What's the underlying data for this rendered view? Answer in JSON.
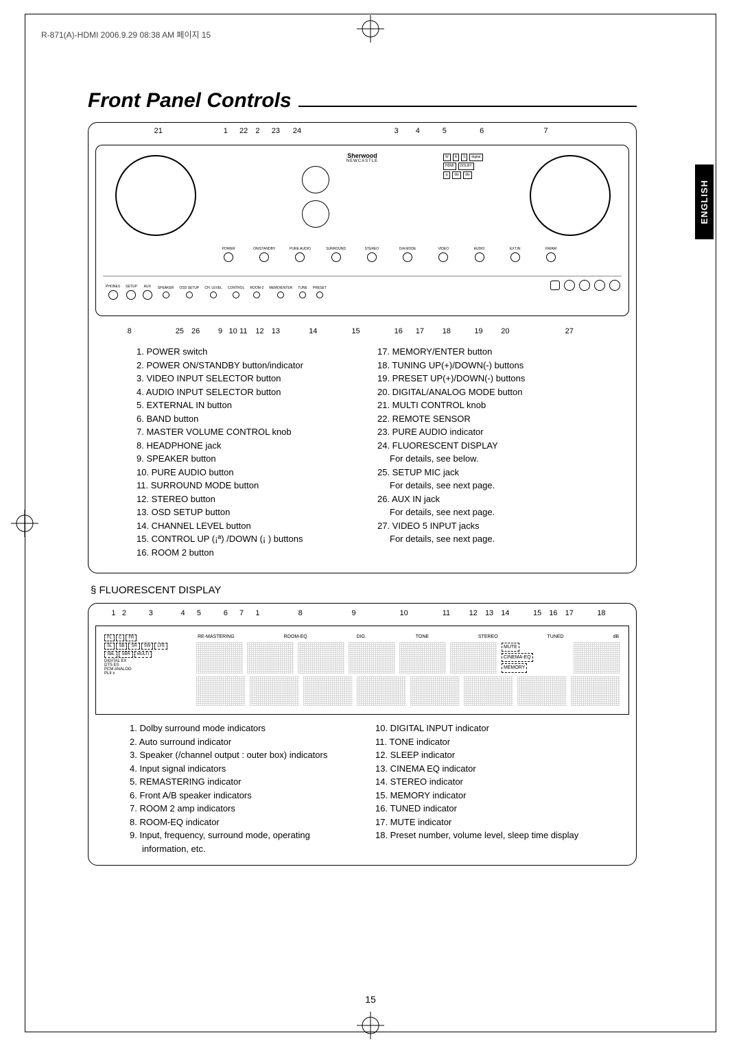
{
  "meta": {
    "header_line": "R-871(A)-HDMI  2006.9.29  08:38 AM  페이지 15",
    "page_number": "15",
    "lang_tab": "ENGLISH"
  },
  "title": "Front Panel Controls",
  "section2_title": "§ FLUORESCENT DISPLAY",
  "panel": {
    "top_callouts": [
      "21",
      "1",
      "22",
      "2",
      "23",
      "24",
      "3",
      "4",
      "5",
      "6",
      "7"
    ],
    "brand": "Sherwood",
    "brand_sub": "NEWCASTLE",
    "btn_labels": [
      "POWER",
      "ON/STANDBY",
      "PURE AUDIO",
      "SURROUND",
      "STEREO",
      "D/A MODE",
      "VIDEO",
      "AUDIO",
      "EXT.IN",
      "FM/AM"
    ],
    "lower_labels": [
      "PHONES",
      "SETUP",
      "AUX",
      "SPEAKER",
      "OSD SETUP",
      "CH. LEVEL",
      "CONTROL",
      "ROOM-2",
      "MEMO/ENTER",
      "TUNE",
      "PRESET"
    ],
    "jack_labels": [
      "OPT.5",
      "S-VIDEO",
      "VIDEO",
      "L—AUDIO—R"
    ],
    "bottom_callouts": [
      "8",
      "25",
      "26",
      "9",
      "10",
      "11",
      "12",
      "13",
      "14",
      "15",
      "16",
      "17",
      "18",
      "19",
      "20",
      "27"
    ]
  },
  "legend": {
    "left": [
      "1. POWER switch",
      "2. POWER ON/STANDBY button/indicator",
      "3. VIDEO INPUT SELECTOR button",
      "4. AUDIO INPUT SELECTOR button",
      "5. EXTERNAL IN button",
      "6. BAND button",
      "7. MASTER VOLUME CONTROL knob",
      "8. HEADPHONE jack",
      "9. SPEAKER button",
      "10. PURE AUDIO button",
      "11. SURROUND MODE button",
      "12. STEREO button",
      "13. OSD SETUP button",
      "14. CHANNEL LEVEL button",
      "15. CONTROL UP (¡ª) /DOWN (¡ ) buttons",
      "16. ROOM 2 button"
    ],
    "right": [
      "17. MEMORY/ENTER button",
      "18. TUNING UP(+)/DOWN(-) buttons",
      "19. PRESET UP(+)/DOWN(-) buttons",
      "20. DIGITAL/ANALOG MODE button",
      "21. MULTI CONTROL knob",
      "22. REMOTE SENSOR",
      "23. PURE AUDIO indicator",
      "24. FLUORESCENT DISPLAY",
      "    For details, see below.",
      "25. SETUP MIC jack",
      "    For details, see next page.",
      "26. AUX IN jack",
      "    For details, see next page.",
      "27. VIDEO 5 INPUT jacks",
      "    For details, see next page."
    ]
  },
  "fl": {
    "top_callouts": [
      "1",
      "2",
      "3",
      "4",
      "5",
      "6",
      "7",
      "1",
      "8",
      "9",
      "10",
      "11",
      "12",
      "13",
      "14",
      "15",
      "16",
      "17",
      "18"
    ],
    "indicators_rows": [
      [
        "FL",
        "C",
        "FR"
      ],
      [
        "SL",
        "SB",
        "SR",
        "SW",
        "LFE"
      ],
      [
        "SBL",
        "SBR",
        "MULTI"
      ]
    ],
    "small_rows": [
      "DIGITAL EX",
      "DTS ES",
      "PCM  ANALOG",
      "PLII x"
    ],
    "top_labels": [
      "RE-MASTERING",
      "ROOM-EQ",
      "DIG.",
      "TONE",
      "STEREO",
      "TUNED",
      "dB"
    ],
    "right_labels": [
      "MUTE",
      "CINEMA-EQ",
      "MEMORY"
    ]
  },
  "fl_legend": {
    "left": [
      "1. Dolby surround mode indicators",
      "2. Auto surround indicator",
      "3. Speaker (/channel output : outer box) indicators",
      "4. Input signal indicators",
      "5. REMASTERING indicator",
      "6. Front A/B speaker indicators",
      "7. ROOM 2 amp indicators",
      "8. ROOM-EQ indicator",
      "9. Input, frequency, surround mode, operating",
      "    information, etc."
    ],
    "right": [
      "10. DIGITAL INPUT indicator",
      "11. TONE indicator",
      "12. SLEEP indicator",
      "13. CINEMA EQ indicator",
      "14. STEREO indicator",
      "15. MEMORY indicator",
      "16. TUNED indicator",
      "17. MUTE indicator",
      "18. Preset number, volume level, sleep time display"
    ]
  },
  "colors": {
    "page_bg": "#ffffff",
    "ink": "#000000",
    "faint": "#888888"
  }
}
